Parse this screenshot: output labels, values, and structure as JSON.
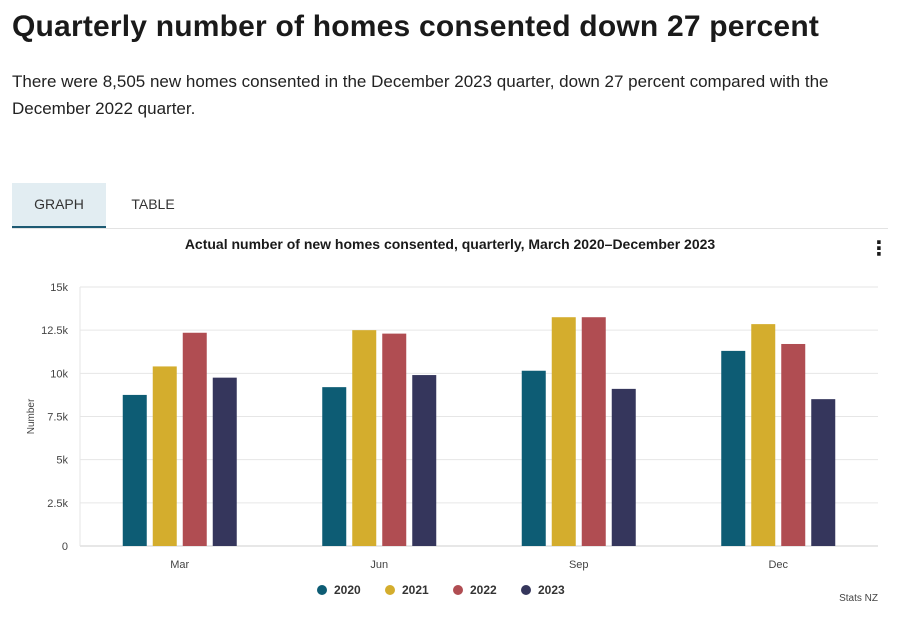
{
  "page": {
    "title": "Quarterly number of homes consented down 27 percent",
    "summary": "There were 8,505 new homes consented in the December 2023 quarter, down 27 percent compared with the December 2022 quarter."
  },
  "tabs": [
    {
      "label": "GRAPH",
      "active": true
    },
    {
      "label": "TABLE",
      "active": false
    }
  ],
  "menu_icon": "⋮",
  "chart_data": {
    "type": "bar",
    "title": "Actual number of new homes consented, quarterly, March 2020–December 2023",
    "ylabel": "Number",
    "xlabel": "",
    "ylim": [
      0,
      15000
    ],
    "yticks": [
      0,
      2500,
      5000,
      7500,
      10000,
      12500,
      15000
    ],
    "ytick_labels": [
      "0",
      "2.5k",
      "5k",
      "7.5k",
      "10k",
      "12.5k",
      "15k"
    ],
    "categories": [
      "Mar",
      "Jun",
      "Sep",
      "Dec"
    ],
    "series": [
      {
        "name": "2020",
        "color": "#0d5c74",
        "values": [
          8750,
          9200,
          10150,
          11300
        ]
      },
      {
        "name": "2021",
        "color": "#d4ad2d",
        "values": [
          10400,
          12500,
          13250,
          12850
        ]
      },
      {
        "name": "2022",
        "color": "#b04d52",
        "values": [
          12350,
          12300,
          13250,
          11700
        ]
      },
      {
        "name": "2023",
        "color": "#35365c",
        "values": [
          9750,
          9900,
          9100,
          8505
        ]
      }
    ],
    "legend_position": "bottom",
    "source": "Stats NZ",
    "grid": true
  }
}
